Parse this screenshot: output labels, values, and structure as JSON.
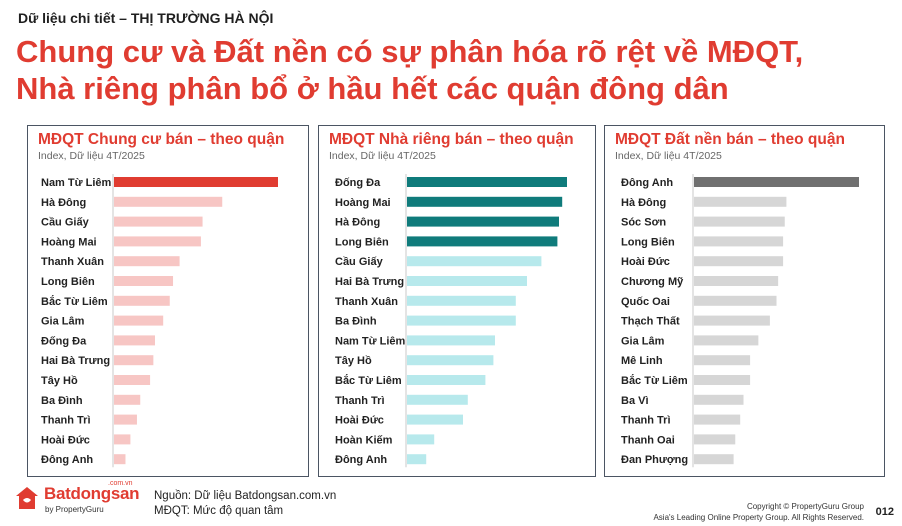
{
  "header": {
    "kicker": "Dữ liệu chi tiết – THỊ TRƯỜNG HÀ NỘI",
    "headline_line1": "Chung cư và Đất nền có sự phân hóa rõ rệt về MĐQT,",
    "headline_line2": "Nhà riêng phân bổ ở hầu hết các quận đông dân"
  },
  "colors": {
    "accent": "#e03c31",
    "panel1_highlight": "#e03c31",
    "panel1_bar": "#f7c6c4",
    "panel2_highlight": "#0f7b7b",
    "panel2_bar": "#b7e9ec",
    "panel3_highlight": "#707070",
    "panel3_bar": "#d6d6d6"
  },
  "chart_data": [
    {
      "type": "bar",
      "orientation": "horizontal",
      "title": "MĐQT Chung cư bán – theo quận",
      "subtitle": "Index, Dữ liệu 4T/2025",
      "categories": [
        "Nam Từ Liêm",
        "Hà Đông",
        "Cầu Giấy",
        "Hoàng Mai",
        "Thanh Xuân",
        "Long Biên",
        "Bắc Từ Liêm",
        "Gia Lâm",
        "Đống Đa",
        "Hai Bà Trưng",
        "Tây Hồ",
        "Ba Đình",
        "Thanh Trì",
        "Hoài Đức",
        "Đông Anh"
      ],
      "values": [
        100,
        66,
        54,
        53,
        40,
        36,
        34,
        30,
        25,
        24,
        22,
        16,
        14,
        10,
        7
      ],
      "highlight_count": 1,
      "xlim": [
        0,
        100
      ],
      "grid": false
    },
    {
      "type": "bar",
      "orientation": "horizontal",
      "title": "MĐQT Nhà riêng bán – theo quận",
      "subtitle": "Index, Dữ liệu 4T/2025",
      "categories": [
        "Đống Đa",
        "Hoàng Mai",
        "Hà Đông",
        "Long Biên",
        "Cầu Giấy",
        "Hai Bà Trưng",
        "Thanh Xuân",
        "Ba Đình",
        "Nam Từ Liêm",
        "Tây Hồ",
        "Bắc Từ Liêm",
        "Thanh Trì",
        "Hoài Đức",
        "Hoàn Kiếm",
        "Đông Anh"
      ],
      "values": [
        100,
        97,
        95,
        94,
        84,
        75,
        68,
        68,
        55,
        54,
        49,
        38,
        35,
        17,
        12
      ],
      "highlight_count": 4,
      "xlim": [
        0,
        100
      ],
      "grid": false
    },
    {
      "type": "bar",
      "orientation": "horizontal",
      "title": "MĐQT Đất nền bán – theo quận",
      "subtitle": "Index, Dữ liệu 4T/2025",
      "categories": [
        "Đông Anh",
        "Hà Đông",
        "Sóc Sơn",
        "Long Biên",
        "Hoài Đức",
        "Chương Mỹ",
        "Quốc Oai",
        "Thạch Thất",
        "Gia Lâm",
        "Mê Linh",
        "Bắc Từ Liêm",
        "Ba Vì",
        "Thanh Trì",
        "Thanh Oai",
        "Đan Phượng"
      ],
      "values": [
        100,
        56,
        55,
        54,
        54,
        51,
        50,
        46,
        39,
        34,
        34,
        30,
        28,
        25,
        24
      ],
      "highlight_count": 1,
      "xlim": [
        0,
        100
      ],
      "grid": false
    }
  ],
  "footer": {
    "source": "Nguồn: Dữ liệu Batdongsan.com.vn",
    "abbreviation": "MĐQT: Mức độ quan tâm",
    "logo_name": "Batdongsan",
    "logo_domain": ".com.vn",
    "logo_by": "by PropertyGuru",
    "copyright_line1": "Copyright © PropertyGuru Group",
    "copyright_line2": "Asia's Leading Online Property Group. All Rights Reserved.",
    "page_number": "012"
  }
}
